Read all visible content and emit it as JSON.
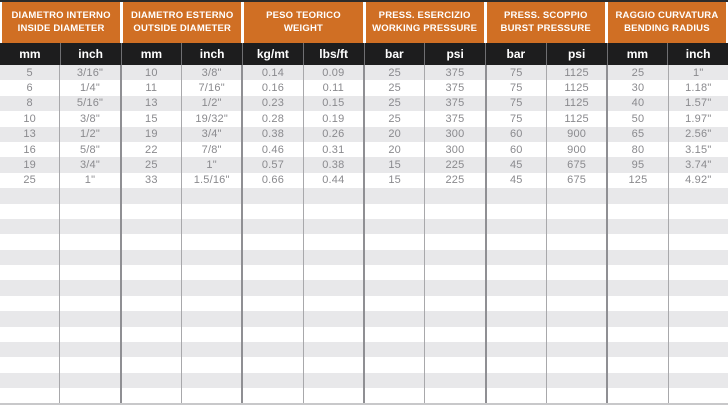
{
  "table": {
    "groups": [
      {
        "id": "inside-diameter",
        "title_it": "DIAMETRO INTERNO",
        "title_en": "INSIDE DIAMETER",
        "units": [
          "mm",
          "inch"
        ]
      },
      {
        "id": "outside-diameter",
        "title_it": "DIAMETRO ESTERNO",
        "title_en": "OUTSIDE DIAMETER",
        "units": [
          "mm",
          "inch"
        ]
      },
      {
        "id": "weight",
        "title_it": "PESO TEORICO",
        "title_en": "WEIGHT",
        "units": [
          "kg/mt",
          "lbs/ft"
        ]
      },
      {
        "id": "working-pressure",
        "title_it": "PRESS. ESERCIZIO",
        "title_en": "WORKING PRESSURE",
        "units": [
          "bar",
          "psi"
        ]
      },
      {
        "id": "burst-pressure",
        "title_it": "PRESS. SCOPPIO",
        "title_en": "BURST PRESSURE",
        "units": [
          "bar",
          "psi"
        ]
      },
      {
        "id": "bending-radius",
        "title_it": "RAGGIO CURVATURA",
        "title_en": "BENDING RADIUS",
        "units": [
          "mm",
          "inch"
        ]
      }
    ],
    "rows": [
      [
        "5",
        "3/16\"",
        "10",
        "3/8\"",
        "0.14",
        "0.09",
        "25",
        "375",
        "75",
        "1125",
        "25",
        "1\""
      ],
      [
        "6",
        "1/4\"",
        "11",
        "7/16\"",
        "0.16",
        "0.11",
        "25",
        "375",
        "75",
        "1125",
        "30",
        "1.18\""
      ],
      [
        "8",
        "5/16\"",
        "13",
        "1/2\"",
        "0.23",
        "0.15",
        "25",
        "375",
        "75",
        "1125",
        "40",
        "1.57\""
      ],
      [
        "10",
        "3/8\"",
        "15",
        "19/32\"",
        "0.28",
        "0.19",
        "25",
        "375",
        "75",
        "1125",
        "50",
        "1.97\""
      ],
      [
        "13",
        "1/2\"",
        "19",
        "3/4\"",
        "0.38",
        "0.26",
        "20",
        "300",
        "60",
        "900",
        "65",
        "2.56\""
      ],
      [
        "16",
        "5/8\"",
        "22",
        "7/8\"",
        "0.46",
        "0.31",
        "20",
        "300",
        "60",
        "900",
        "80",
        "3.15\""
      ],
      [
        "19",
        "3/4\"",
        "25",
        "1\"",
        "0.57",
        "0.38",
        "15",
        "225",
        "45",
        "675",
        "95",
        "3.74\""
      ],
      [
        "25",
        "1\"",
        "33",
        "1.5/16\"",
        "0.66",
        "0.44",
        "15",
        "225",
        "45",
        "675",
        "125",
        "4.92\""
      ]
    ],
    "empty_row_count": 14,
    "colors": {
      "accent_orange": "#d06f24",
      "header_black": "#1d1d1e",
      "stripe_gray": "#e8e8ea",
      "data_text": "#8a8a8e",
      "divider": "#a8a8ab",
      "top_border": "#2b2b2b",
      "bottom_border": "#c8c8ca"
    }
  }
}
